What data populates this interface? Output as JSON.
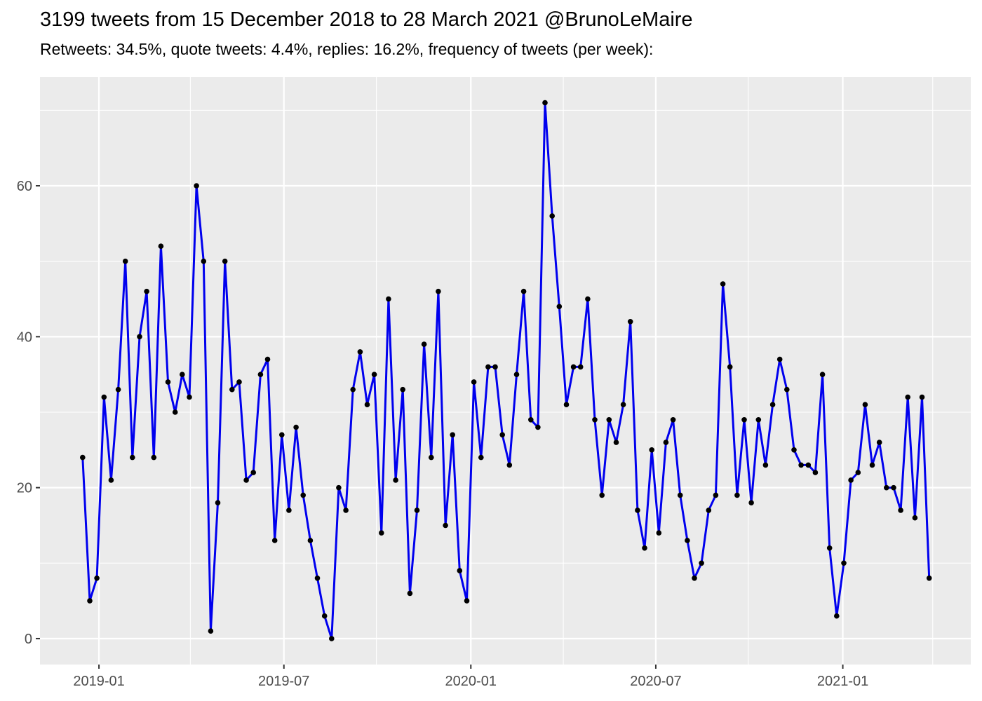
{
  "header": {
    "title": "3199 tweets from 15 December 2018 to 28 March 2021 @BrunoLeMaire",
    "subtitle": "Retweets: 34.5%, quote tweets: 4.4%, replies: 16.2%, frequency of tweets (per week):"
  },
  "chart_data": {
    "type": "line",
    "title": "3199 tweets from 15 December 2018 to 28 March 2021 @BrunoLeMaire",
    "subtitle": "Retweets: 34.5%, quote tweets: 4.4%, replies: 16.2%, frequency of tweets (per week):",
    "xlabel": "",
    "ylabel": "",
    "legend_position": "none",
    "grid": true,
    "x_unit": "week index from first week (week of 15 December 2018) to last week (week of 28 March 2021)",
    "values": [
      24,
      5,
      8,
      32,
      21,
      33,
      50,
      24,
      40,
      46,
      24,
      52,
      34,
      30,
      35,
      32,
      60,
      50,
      1,
      18,
      50,
      33,
      34,
      21,
      22,
      35,
      37,
      13,
      27,
      17,
      28,
      19,
      13,
      8,
      3,
      0,
      20,
      17,
      33,
      38,
      31,
      35,
      14,
      45,
      21,
      33,
      6,
      17,
      39,
      24,
      46,
      15,
      27,
      9,
      5,
      34,
      24,
      36,
      36,
      27,
      23,
      35,
      46,
      29,
      28,
      71,
      56,
      44,
      31,
      36,
      36,
      45,
      29,
      19,
      29,
      26,
      31,
      42,
      17,
      12,
      25,
      14,
      26,
      29,
      19,
      13,
      8,
      10,
      17,
      19,
      47,
      36,
      19,
      29,
      18,
      29,
      23,
      31,
      37,
      33,
      25,
      23,
      23,
      22,
      35,
      12,
      3,
      10,
      21,
      22,
      31,
      23,
      26,
      20,
      20,
      17,
      32,
      16,
      32,
      8
    ],
    "x_ticks": [
      {
        "label": "2019-01",
        "week": 2.29
      },
      {
        "label": "2019-07",
        "week": 28.29
      },
      {
        "label": "2020-01",
        "week": 54.57
      },
      {
        "label": "2020-07",
        "week": 80.57
      },
      {
        "label": "2021-01",
        "week": 106.86
      }
    ],
    "x_minor_weeks": [
      15.14,
      41.29,
      67.57,
      93.57,
      119.5
    ],
    "y_ticks": [
      0,
      20,
      40,
      60
    ],
    "y_minor_ticks": [
      10,
      30,
      50,
      70
    ],
    "ylim": [
      -3.44,
      74.4
    ],
    "xlim_weeks": [
      -6.0,
      124.85
    ]
  },
  "style": {
    "line_color": "#0000EE",
    "point_color": "#000000",
    "panel_color": "#EBEBEB",
    "grid_color": "#FFFFFF",
    "tick_color": "#333333",
    "tick_label_color": "#4D4D4D",
    "title_color": "#000000"
  }
}
